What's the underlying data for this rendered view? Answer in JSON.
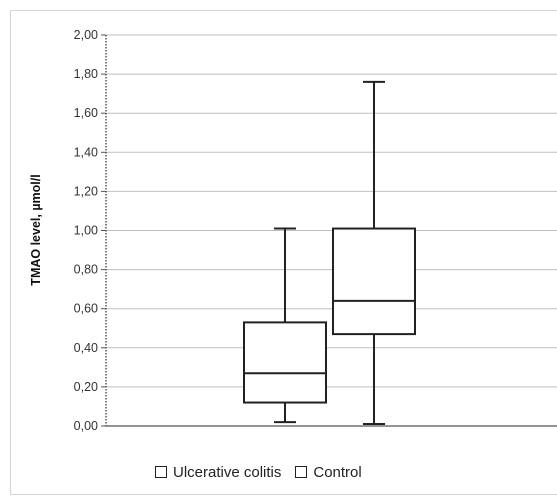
{
  "chart_data": {
    "type": "box",
    "title": "",
    "xlabel": "",
    "ylabel": "TMAO level, µmol/l",
    "ylim": [
      0,
      2
    ],
    "yticks": [
      "0,00",
      "0,20",
      "0,40",
      "0,60",
      "0,80",
      "1,00",
      "1,20",
      "1,40",
      "1,60",
      "1,80",
      "2,00"
    ],
    "ytick_values": [
      0,
      0.2,
      0.4,
      0.6,
      0.8,
      1.0,
      1.2,
      1.4,
      1.6,
      1.8,
      2.0
    ],
    "grid": true,
    "legend_placement": "bottom",
    "series": [
      {
        "name": "Ulcerative colitis",
        "min": 0.02,
        "q1": 0.12,
        "median": 0.27,
        "q3": 0.53,
        "max": 1.01
      },
      {
        "name": "Control",
        "min": 0.01,
        "q1": 0.47,
        "median": 0.64,
        "q3": 1.01,
        "max": 1.76
      }
    ]
  },
  "legend": {
    "items": [
      "Ulcerative colitis",
      "Control"
    ]
  }
}
